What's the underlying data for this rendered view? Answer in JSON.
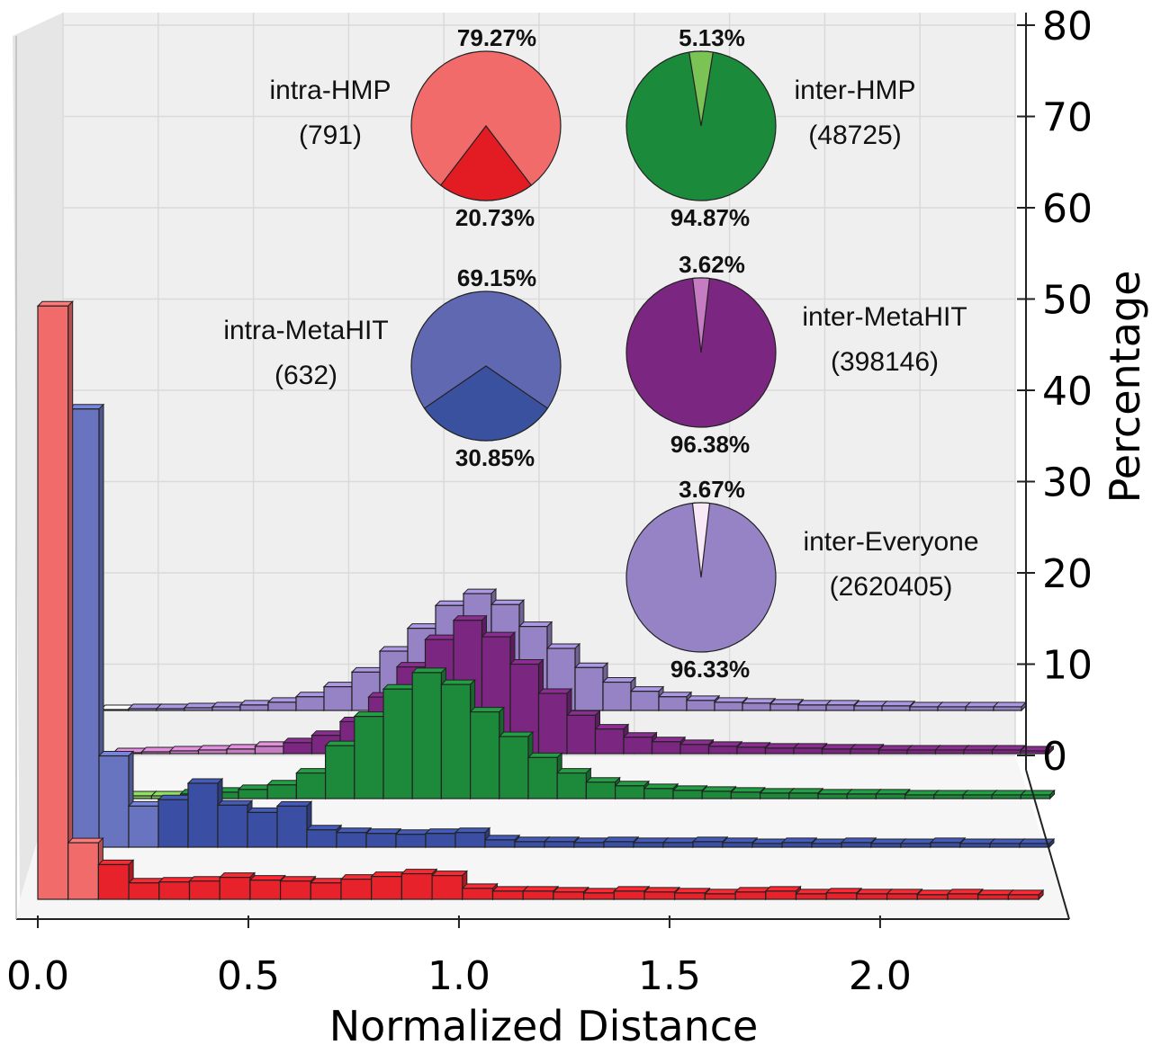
{
  "chart_data": {
    "type": "bar",
    "projection": "3d",
    "xlabel": "Normalized Distance",
    "ylabel": "Percentage",
    "xticks": [
      "0.0",
      "0.5",
      "1.0",
      "1.5",
      "2.0"
    ],
    "yticks": [
      "0",
      "10",
      "20",
      "30",
      "40",
      "50",
      "60",
      "70",
      "80"
    ],
    "ylim": [
      0,
      80
    ],
    "xlim": [
      0,
      2.4
    ],
    "bin_width": 0.0714,
    "grid": true,
    "series": [
      {
        "id": "intra-HMP",
        "color": "#e8222b",
        "light_color": "#f26b6b",
        "values": [
          65.0,
          6.2,
          3.8,
          1.8,
          1.9,
          2.0,
          2.4,
          2.1,
          2.0,
          1.8,
          2.2,
          2.5,
          2.8,
          2.6,
          1.2,
          0.9,
          0.9,
          0.8,
          0.7,
          0.9,
          0.8,
          0.7,
          0.6,
          0.8,
          0.9,
          0.6,
          0.7,
          0.6,
          0.6,
          0.5,
          0.6,
          0.5,
          0.5
        ],
        "light_bins": 2
      },
      {
        "id": "intra-MetaHIT",
        "color": "#3a4fa3",
        "light_color": "#6874bf",
        "values": [
          48.0,
          10.0,
          4.5,
          5.2,
          7.0,
          4.6,
          3.8,
          4.5,
          1.9,
          1.6,
          1.5,
          1.4,
          1.5,
          1.6,
          0.8,
          0.6,
          0.6,
          0.5,
          0.6,
          0.5,
          0.5,
          0.6,
          0.5,
          0.4,
          0.5,
          0.4,
          0.5,
          0.4,
          0.4,
          0.5,
          0.4,
          0.4,
          0.4
        ],
        "light_bins": 3
      },
      {
        "id": "inter-HMP",
        "color": "#1c8a3a",
        "light_color": "#7cc356",
        "values": [
          0.2,
          0.3,
          0.3,
          0.5,
          0.7,
          1.0,
          1.5,
          2.8,
          5.8,
          9.0,
          12.0,
          13.8,
          12.5,
          9.5,
          6.8,
          4.5,
          2.8,
          1.8,
          1.4,
          1.1,
          0.9,
          0.8,
          0.7,
          0.6,
          0.6,
          0.5,
          0.5,
          0.5,
          0.4,
          0.4,
          0.4,
          0.4,
          0.4
        ],
        "light_bins": 3
      },
      {
        "id": "inter-MetaHIT",
        "color": "#7b2680",
        "light_color": "#c67cc2",
        "values": [
          0.1,
          0.2,
          0.3,
          0.4,
          0.5,
          0.8,
          1.2,
          2.0,
          3.5,
          6.2,
          9.5,
          12.5,
          14.6,
          12.8,
          9.8,
          6.6,
          4.2,
          2.7,
          1.8,
          1.3,
          1.0,
          0.8,
          0.7,
          0.6,
          0.6,
          0.5,
          0.5,
          0.4,
          0.4,
          0.4,
          0.4,
          0.4,
          0.3
        ],
        "light_bins": 6
      },
      {
        "id": "inter-Everyone",
        "color": "#9583c5",
        "light_color": "#f6eef6",
        "values": [
          0.1,
          0.2,
          0.2,
          0.3,
          0.4,
          0.6,
          0.9,
          1.5,
          2.6,
          4.2,
          6.5,
          9.0,
          11.5,
          12.8,
          11.6,
          9.2,
          6.8,
          4.7,
          3.1,
          2.1,
          1.5,
          1.1,
          0.9,
          0.8,
          0.7,
          0.6,
          0.6,
          0.5,
          0.5,
          0.4,
          0.4,
          0.4,
          0.4
        ],
        "light_bins": 1
      }
    ],
    "pies": [
      {
        "name": "intra-HMP",
        "count": "(791)",
        "slices": [
          {
            "label": "79.27%",
            "value": 79.27,
            "color": "#f26b6b"
          },
          {
            "label": "20.73%",
            "value": 20.73,
            "color": "#e31c23"
          }
        ]
      },
      {
        "name": "inter-HMP",
        "count": "(48725)",
        "slices": [
          {
            "label": "5.13%",
            "value": 5.13,
            "color": "#7cc356"
          },
          {
            "label": "94.87%",
            "value": 94.87,
            "color": "#1b8a3a"
          }
        ]
      },
      {
        "name": "intra-MetaHIT",
        "count": "(632)",
        "slices": [
          {
            "label": "69.15%",
            "value": 69.15,
            "color": "#6068b1"
          },
          {
            "label": "30.85%",
            "value": 30.85,
            "color": "#3a51a0"
          }
        ]
      },
      {
        "name": "inter-MetaHIT",
        "count": "(398146)",
        "slices": [
          {
            "label": "3.62%",
            "value": 3.62,
            "color": "#c67cc2"
          },
          {
            "label": "96.38%",
            "value": 96.38,
            "color": "#7b2680"
          }
        ]
      },
      {
        "name": "inter-Everyone",
        "count": "(2620405)",
        "slices": [
          {
            "label": "3.67%",
            "value": 3.67,
            "color": "#f9e9f6"
          },
          {
            "label": "96.33%",
            "value": 96.33,
            "color": "#9583c5"
          }
        ]
      }
    ]
  }
}
